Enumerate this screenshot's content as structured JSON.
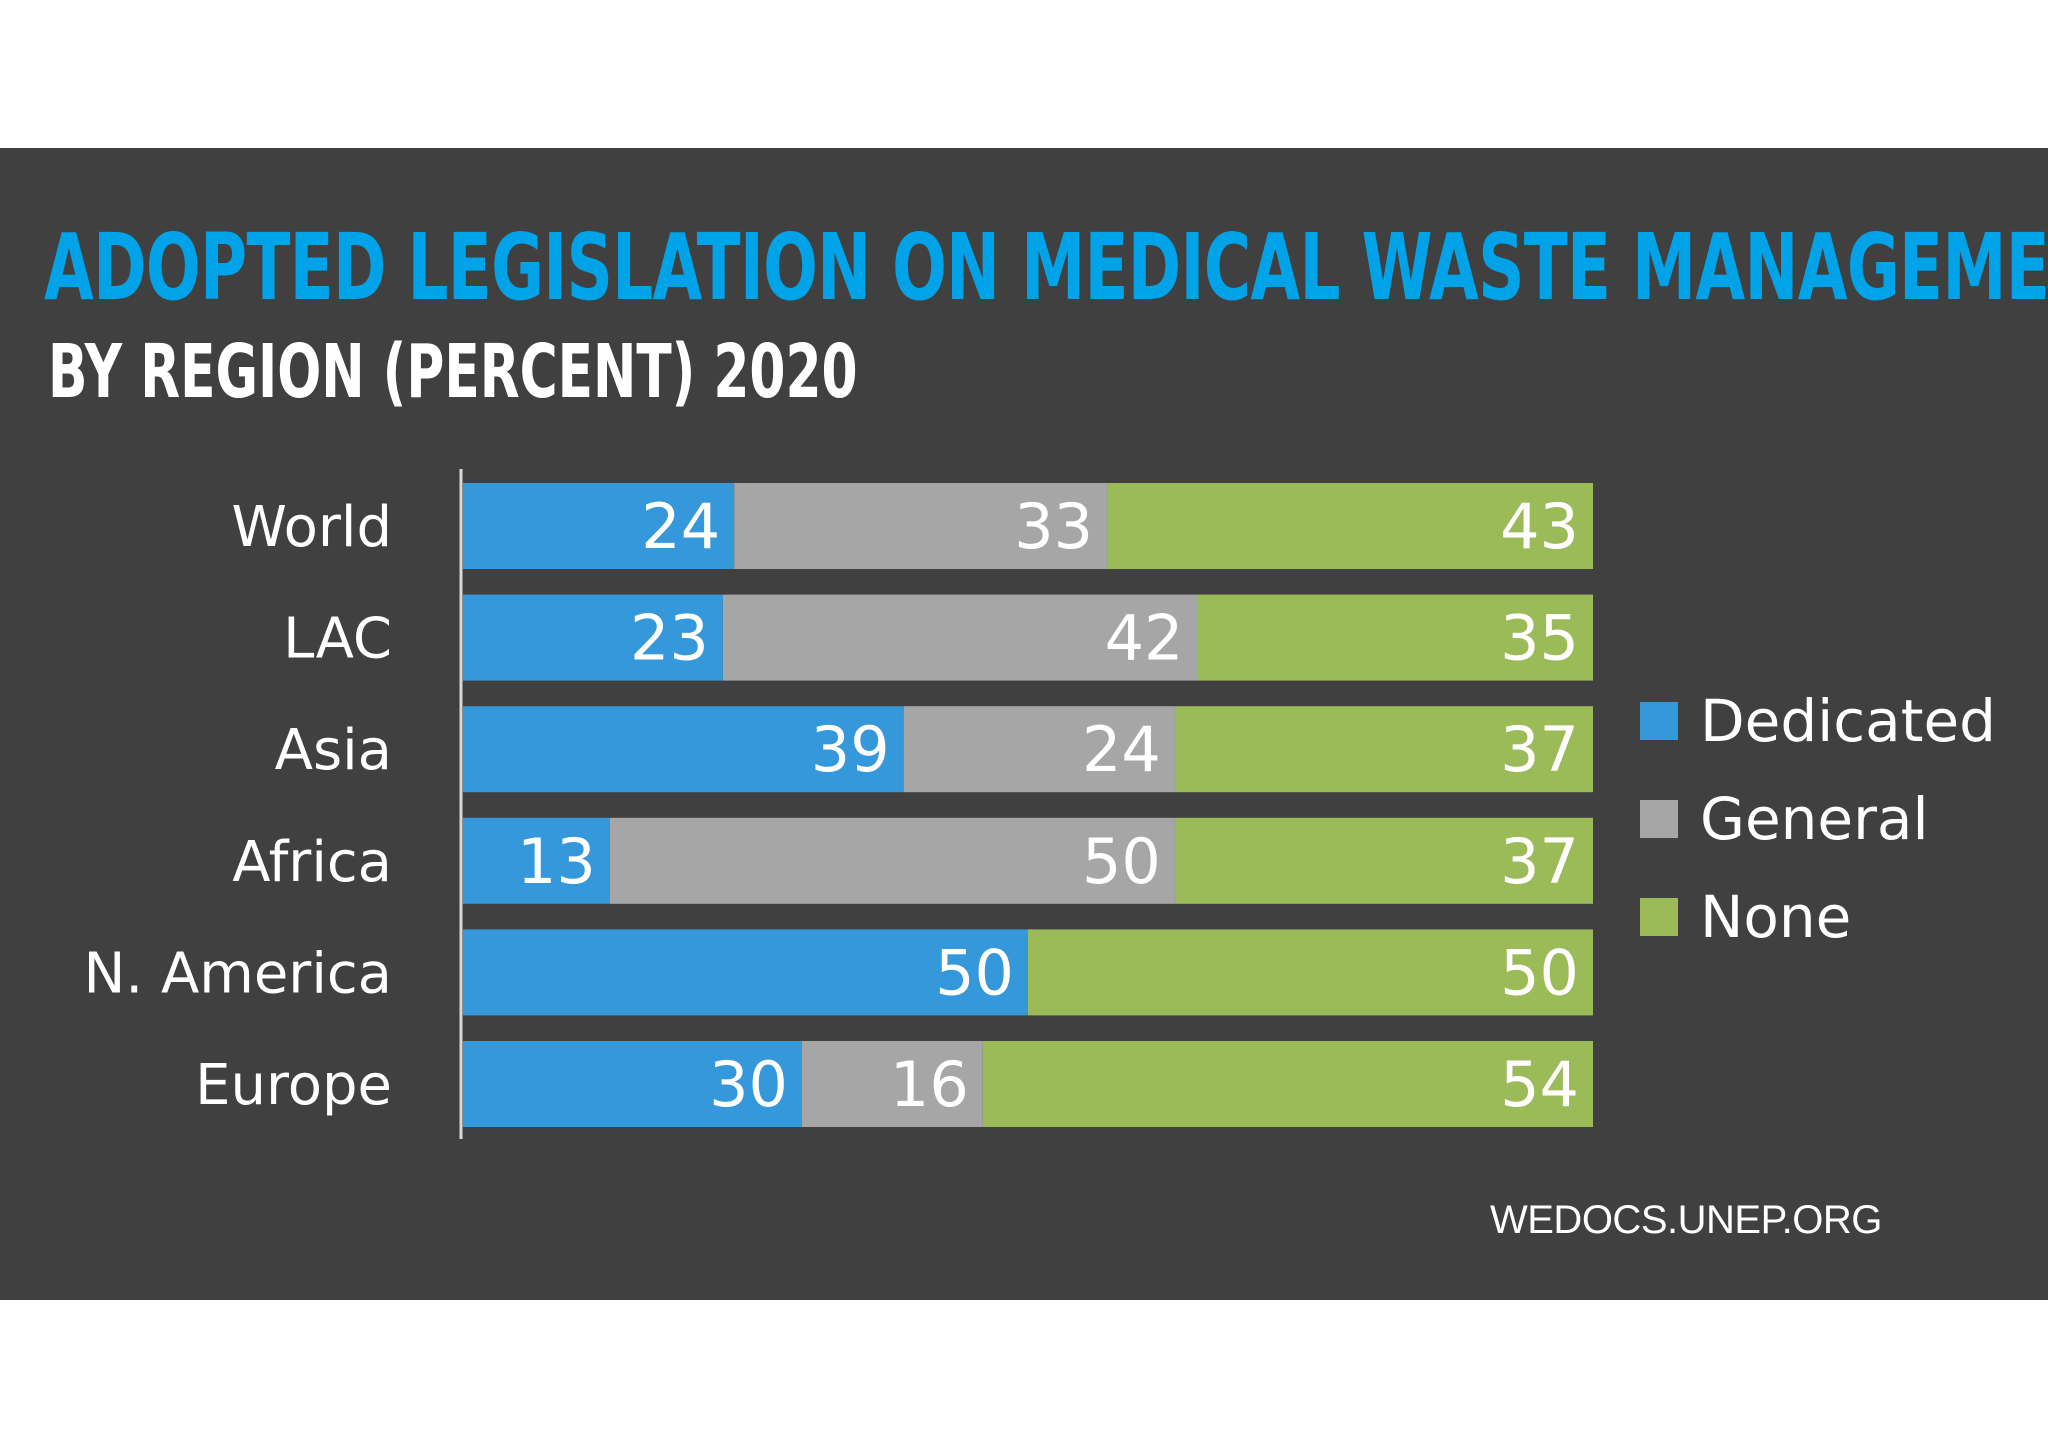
{
  "colors": {
    "panel": "#404040",
    "title": "#00a3e8",
    "subtitle": "#ffffff",
    "text": "#ffffff",
    "axis": "#d9d9d9"
  },
  "chart_data": {
    "type": "bar",
    "orientation": "horizontal",
    "stacked": true,
    "title": "ADOPTED LEGISLATION ON MEDICAL WASTE MANAGEMENT",
    "subtitle": "BY REGION (PERCENT) 2020",
    "categories": [
      "World",
      "LAC",
      "Asia",
      "Africa",
      "N. America",
      "Europe"
    ],
    "series": [
      {
        "name": "Dedicated",
        "color": "#3498db",
        "values": [
          24,
          23,
          39,
          13,
          50,
          30
        ]
      },
      {
        "name": "General",
        "color": "#a6a6a6",
        "values": [
          33,
          42,
          24,
          50,
          0,
          16
        ]
      },
      {
        "name": "None",
        "color": "#9bbb59",
        "values": [
          43,
          35,
          37,
          37,
          50,
          54
        ]
      }
    ],
    "xlim": [
      0,
      100
    ],
    "grid": false,
    "legend": "right"
  },
  "source": "WEDOCS.UNEP.ORG"
}
